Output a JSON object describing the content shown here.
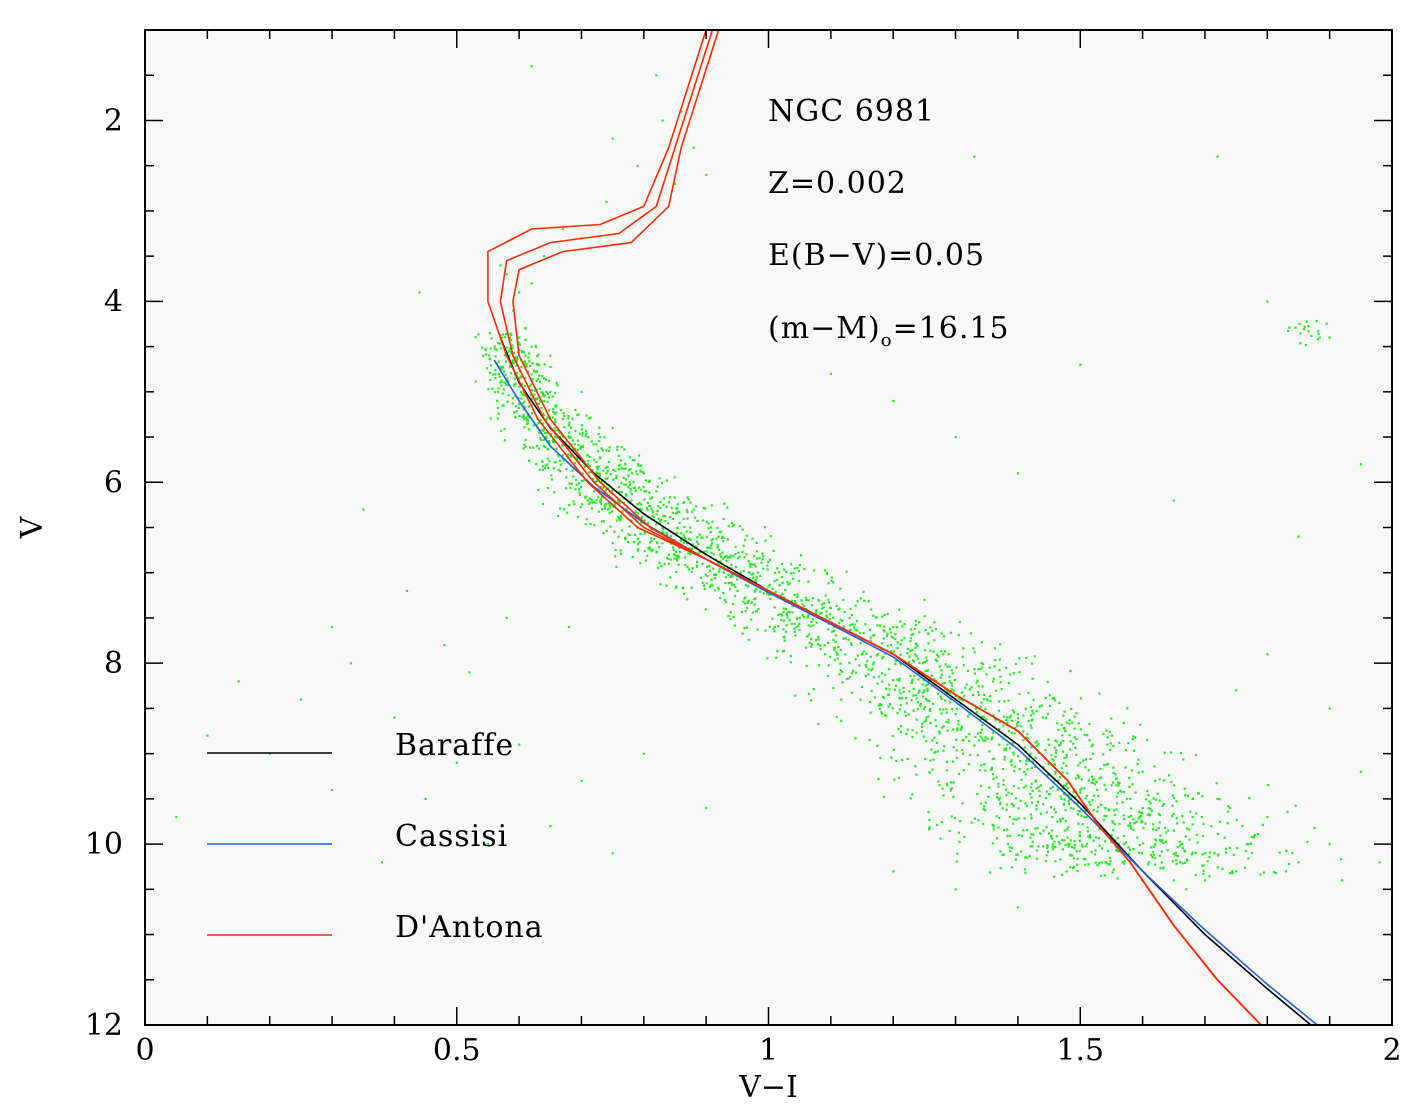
{
  "chart_data": {
    "type": "scatter",
    "title": "",
    "xlabel": "V−I",
    "ylabel": "V",
    "xlim": [
      0,
      2
    ],
    "ylim": [
      12,
      1
    ],
    "y_inverted": true,
    "x_ticks": [
      {
        "value": 0,
        "label": "0"
      },
      {
        "value": 0.5,
        "label": "0.5"
      },
      {
        "value": 1,
        "label": "1"
      },
      {
        "value": 1.5,
        "label": "1.5"
      },
      {
        "value": 2,
        "label": "2"
      }
    ],
    "y_ticks": [
      {
        "value": 2,
        "label": "2"
      },
      {
        "value": 4,
        "label": "4"
      },
      {
        "value": 6,
        "label": "6"
      },
      {
        "value": 8,
        "label": "8"
      },
      {
        "value": 10,
        "label": "10"
      },
      {
        "value": 12,
        "label": "12"
      }
    ],
    "annotations": {
      "cluster": "NGC 6981",
      "metallicity": "Z=0.002",
      "reddening": "E(B−V)=0.05",
      "distance_prefix": "(m−M)",
      "distance_sub": "o",
      "distance_value": "=16.15"
    },
    "legend_placement": "bottom-left",
    "series": [
      {
        "name": "Baraffe",
        "kind": "line",
        "color": "#000000",
        "points": [
          [
            0.57,
            4.4
          ],
          [
            0.6,
            4.9
          ],
          [
            0.65,
            5.4
          ],
          [
            0.72,
            5.9
          ],
          [
            0.8,
            6.35
          ],
          [
            0.9,
            6.8
          ],
          [
            1.0,
            7.2
          ],
          [
            1.1,
            7.55
          ],
          [
            1.2,
            7.9
          ],
          [
            1.3,
            8.4
          ],
          [
            1.4,
            8.9
          ],
          [
            1.5,
            9.55
          ],
          [
            1.6,
            10.3
          ],
          [
            1.7,
            11.0
          ],
          [
            1.8,
            11.6
          ],
          [
            1.87,
            12.0
          ]
        ]
      },
      {
        "name": "Cassisi",
        "kind": "line",
        "color": "#2060e0",
        "points": [
          [
            0.56,
            4.65
          ],
          [
            0.6,
            5.1
          ],
          [
            0.65,
            5.6
          ],
          [
            0.72,
            6.05
          ],
          [
            0.8,
            6.45
          ],
          [
            0.9,
            6.85
          ],
          [
            1.0,
            7.22
          ],
          [
            1.1,
            7.57
          ],
          [
            1.2,
            7.93
          ],
          [
            1.3,
            8.43
          ],
          [
            1.4,
            8.95
          ],
          [
            1.5,
            9.6
          ],
          [
            1.6,
            10.3
          ],
          [
            1.7,
            10.95
          ],
          [
            1.8,
            11.55
          ],
          [
            1.88,
            12.0
          ]
        ]
      },
      {
        "name": "D'Antona",
        "kind": "line",
        "color": "#ff2a00",
        "points": [
          [
            0.91,
            1.0
          ],
          [
            0.85,
            2.3
          ],
          [
            0.82,
            2.95
          ],
          [
            0.76,
            3.25
          ],
          [
            0.65,
            3.35
          ],
          [
            0.58,
            3.55
          ],
          [
            0.57,
            4.0
          ],
          [
            0.59,
            4.6
          ],
          [
            0.64,
            5.3
          ],
          [
            0.72,
            6.0
          ],
          [
            0.8,
            6.5
          ],
          [
            0.9,
            6.85
          ],
          [
            1.0,
            7.2
          ],
          [
            1.1,
            7.55
          ],
          [
            1.2,
            7.9
          ],
          [
            1.3,
            8.35
          ],
          [
            1.4,
            8.75
          ],
          [
            1.48,
            9.3
          ],
          [
            1.53,
            9.8
          ],
          [
            1.58,
            10.2
          ],
          [
            1.65,
            10.9
          ],
          [
            1.72,
            11.5
          ],
          [
            1.79,
            12.0
          ]
        ]
      },
      {
        "name": "",
        "kind": "line",
        "color": "#ff2a00",
        "points": [
          [
            0.9,
            1.0
          ],
          [
            0.84,
            2.3
          ],
          [
            0.8,
            2.95
          ],
          [
            0.73,
            3.15
          ],
          [
            0.62,
            3.2
          ],
          [
            0.55,
            3.45
          ],
          [
            0.55,
            4.0
          ],
          [
            0.58,
            4.6
          ],
          [
            0.63,
            5.3
          ],
          [
            0.71,
            6.0
          ],
          [
            0.79,
            6.5
          ],
          [
            0.9,
            6.85
          ],
          [
            1.0,
            7.2
          ],
          [
            1.1,
            7.55
          ],
          [
            1.2,
            7.9
          ],
          [
            1.3,
            8.35
          ],
          [
            1.4,
            8.75
          ],
          [
            1.48,
            9.3
          ],
          [
            1.53,
            9.8
          ],
          [
            1.58,
            10.2
          ],
          [
            1.65,
            10.9
          ],
          [
            1.72,
            11.5
          ],
          [
            1.79,
            12.0
          ]
        ]
      },
      {
        "name": "",
        "kind": "line",
        "color": "#ff2a00",
        "points": [
          [
            0.92,
            1.0
          ],
          [
            0.86,
            2.3
          ],
          [
            0.84,
            2.95
          ],
          [
            0.78,
            3.35
          ],
          [
            0.67,
            3.45
          ],
          [
            0.6,
            3.65
          ],
          [
            0.59,
            4.0
          ],
          [
            0.6,
            4.6
          ],
          [
            0.65,
            5.3
          ],
          [
            0.73,
            6.0
          ],
          [
            0.81,
            6.5
          ],
          [
            0.9,
            6.85
          ],
          [
            1.0,
            7.2
          ],
          [
            1.1,
            7.55
          ],
          [
            1.2,
            7.9
          ],
          [
            1.3,
            8.35
          ],
          [
            1.4,
            8.75
          ],
          [
            1.48,
            9.3
          ],
          [
            1.53,
            9.8
          ],
          [
            1.58,
            10.2
          ],
          [
            1.65,
            10.9
          ],
          [
            1.72,
            11.5
          ],
          [
            1.79,
            12.0
          ]
        ]
      }
    ],
    "scatter": {
      "color": "#22ee22",
      "description_points": "cluster stars along main sequence ridge",
      "points": [
        [
          0.58,
          3.7
        ],
        [
          0.6,
          3.9
        ],
        [
          0.59,
          4.1
        ],
        [
          0.61,
          4.3
        ],
        [
          0.62,
          4.5
        ],
        [
          0.63,
          4.7
        ],
        [
          0.64,
          4.85
        ],
        [
          0.65,
          5.0
        ],
        [
          0.66,
          5.15
        ],
        [
          0.67,
          5.3
        ],
        [
          0.68,
          5.45
        ],
        [
          0.7,
          5.6
        ],
        [
          0.72,
          5.75
        ],
        [
          0.74,
          5.9
        ],
        [
          0.76,
          6.05
        ],
        [
          0.78,
          6.2
        ],
        [
          0.8,
          6.35
        ],
        [
          0.83,
          6.5
        ],
        [
          0.86,
          6.65
        ],
        [
          0.9,
          6.8
        ],
        [
          0.94,
          6.95
        ],
        [
          0.98,
          7.1
        ],
        [
          1.02,
          7.25
        ],
        [
          1.06,
          7.4
        ],
        [
          1.1,
          7.55
        ],
        [
          1.14,
          7.7
        ],
        [
          1.18,
          7.85
        ],
        [
          1.22,
          8.0
        ],
        [
          1.26,
          8.2
        ],
        [
          1.3,
          8.4
        ],
        [
          1.34,
          8.6
        ],
        [
          1.38,
          8.8
        ],
        [
          1.42,
          9.0
        ],
        [
          1.46,
          9.2
        ],
        [
          1.5,
          9.4
        ],
        [
          1.54,
          9.6
        ],
        [
          1.58,
          9.8
        ],
        [
          1.62,
          10.0
        ],
        [
          1.66,
          10.2
        ],
        [
          1.7,
          10.4
        ],
        [
          0.57,
          3.6
        ],
        [
          0.62,
          3.8
        ],
        [
          0.6,
          4.4
        ],
        [
          0.66,
          4.9
        ],
        [
          0.69,
          5.2
        ],
        [
          0.73,
          5.5
        ],
        [
          0.77,
          5.8
        ],
        [
          0.82,
          6.1
        ],
        [
          0.87,
          6.4
        ],
        [
          0.92,
          6.6
        ],
        [
          0.97,
          6.9
        ],
        [
          1.03,
          7.1
        ],
        [
          1.08,
          7.3
        ],
        [
          1.13,
          7.5
        ],
        [
          1.19,
          7.7
        ],
        [
          1.24,
          7.95
        ],
        [
          1.29,
          8.15
        ],
        [
          1.35,
          8.4
        ],
        [
          1.4,
          8.65
        ],
        [
          1.45,
          8.9
        ],
        [
          1.5,
          9.1
        ],
        [
          1.55,
          9.35
        ],
        [
          1.6,
          9.6
        ],
        [
          1.65,
          9.85
        ],
        [
          1.7,
          10.1
        ],
        [
          1.75,
          10.3
        ],
        [
          0.61,
          4.6
        ],
        [
          0.64,
          5.1
        ],
        [
          0.68,
          5.6
        ],
        [
          0.72,
          6.1
        ],
        [
          0.79,
          6.5
        ],
        [
          0.85,
          6.8
        ],
        [
          0.95,
          7.2
        ],
        [
          1.05,
          7.5
        ],
        [
          1.15,
          7.9
        ],
        [
          1.25,
          8.3
        ],
        [
          1.37,
          8.9
        ],
        [
          1.47,
          9.5
        ],
        [
          1.57,
          10.0
        ],
        [
          1.67,
          10.5
        ],
        [
          1.77,
          10.0
        ],
        [
          1.8,
          9.7
        ],
        [
          1.85,
          10.2
        ],
        [
          1.72,
          9.5
        ],
        [
          1.62,
          9.3
        ],
        [
          1.52,
          9.0
        ],
        [
          0.63,
          5.4
        ],
        [
          0.67,
          5.7
        ],
        [
          0.71,
          6.2
        ],
        [
          0.76,
          6.4
        ],
        [
          0.84,
          6.9
        ],
        [
          0.93,
          7.3
        ],
        [
          1.01,
          7.6
        ],
        [
          1.11,
          7.9
        ],
        [
          1.21,
          8.3
        ],
        [
          1.31,
          8.7
        ],
        [
          1.41,
          9.2
        ],
        [
          1.51,
          9.7
        ],
        [
          1.61,
          10.2
        ],
        [
          1.71,
          9.8
        ],
        [
          1.78,
          9.9
        ],
        [
          1.83,
          10.3
        ],
        [
          1.9,
          10.0
        ],
        [
          1.74,
          9.6
        ],
        [
          1.68,
          9.7
        ],
        [
          1.58,
          9.5
        ],
        [
          0.65,
          4.6
        ],
        [
          0.7,
          5.0
        ],
        [
          0.75,
          5.4
        ],
        [
          0.8,
          5.9
        ],
        [
          0.88,
          6.3
        ],
        [
          0.96,
          6.7
        ],
        [
          1.04,
          7.0
        ],
        [
          1.12,
          7.3
        ],
        [
          1.2,
          7.6
        ],
        [
          1.28,
          7.9
        ],
        [
          1.36,
          8.2
        ],
        [
          1.44,
          8.6
        ],
        [
          1.52,
          8.9
        ],
        [
          1.6,
          9.2
        ],
        [
          1.68,
          9.5
        ],
        [
          1.76,
          9.8
        ],
        [
          1.84,
          10.1
        ],
        [
          1.92,
          10.4
        ],
        [
          1.55,
          9.9
        ],
        [
          1.65,
          10.4
        ],
        [
          0.85,
          2.7
        ],
        [
          0.88,
          2.3
        ],
        [
          0.83,
          2.0
        ],
        [
          0.79,
          2.5
        ],
        [
          0.74,
          2.9
        ],
        [
          0.7,
          3.3
        ],
        [
          0.67,
          3.2
        ],
        [
          0.64,
          3.5
        ],
        [
          0.82,
          1.5
        ],
        [
          0.86,
          1.9
        ],
        [
          0.9,
          2.6
        ],
        [
          0.75,
          2.2
        ],
        [
          0.35,
          6.3
        ],
        [
          0.44,
          3.9
        ],
        [
          0.62,
          1.4
        ],
        [
          1.2,
          5.1
        ],
        [
          1.33,
          2.4
        ],
        [
          1.5,
          4.7
        ],
        [
          1.72,
          2.4
        ],
        [
          1.8,
          4.0
        ],
        [
          1.9,
          4.4
        ],
        [
          1.4,
          5.9
        ],
        [
          1.65,
          6.2
        ],
        [
          1.85,
          6.6
        ],
        [
          1.95,
          5.8
        ],
        [
          1.3,
          5.5
        ],
        [
          1.1,
          4.8
        ],
        [
          0.05,
          9.7
        ],
        [
          0.1,
          8.8
        ],
        [
          0.2,
          9.0
        ],
        [
          0.3,
          9.4
        ],
        [
          0.4,
          8.6
        ],
        [
          0.5,
          9.1
        ],
        [
          0.6,
          8.9
        ],
        [
          0.7,
          9.3
        ],
        [
          0.8,
          9.0
        ],
        [
          0.9,
          9.6
        ],
        [
          0.55,
          10.0
        ],
        [
          0.45,
          9.5
        ],
        [
          0.38,
          10.2
        ],
        [
          0.65,
          9.8
        ],
        [
          0.75,
          10.1
        ],
        [
          1.3,
          10.5
        ],
        [
          1.4,
          10.7
        ],
        [
          1.2,
          10.3
        ],
        [
          1.98,
          10.2
        ],
        [
          1.95,
          9.2
        ],
        [
          1.9,
          8.5
        ],
        [
          1.8,
          7.9
        ],
        [
          1.75,
          8.3
        ],
        [
          0.3,
          7.6
        ],
        [
          0.25,
          8.4
        ],
        [
          0.15,
          8.2
        ],
        [
          0.33,
          8.0
        ],
        [
          0.48,
          7.8
        ],
        [
          0.58,
          7.5
        ],
        [
          0.68,
          7.6
        ],
        [
          0.52,
          8.1
        ],
        [
          0.42,
          7.2
        ]
      ]
    }
  }
}
